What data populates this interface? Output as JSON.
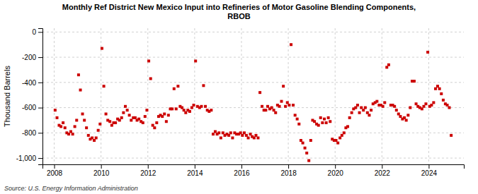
{
  "chart_data": {
    "type": "scatter",
    "title": "Monthly Ref District New Mexico Input into Refineries of Motor Gasoline Blending Components,\nRBOB",
    "ylabel": "Thousand Barrels",
    "source": "Source: U.S. Energy Information Administration",
    "color": "#cc0000",
    "marker": "square",
    "grid": true,
    "xlim": [
      2007.5,
      2025.5
    ],
    "xticks": [
      2008,
      2010,
      2012,
      2014,
      2016,
      2018,
      2020,
      2022,
      2024
    ],
    "ylim": [
      -1050,
      30
    ],
    "yticks": [
      0,
      -200,
      -400,
      -600,
      -800,
      {
        "value": -1000,
        "label": "-1,000"
      }
    ],
    "x": [
      2008.04,
      2008.12,
      2008.21,
      2008.29,
      2008.38,
      2008.46,
      2008.54,
      2008.62,
      2008.71,
      2008.79,
      2008.88,
      2008.96,
      2009.04,
      2009.12,
      2009.21,
      2009.29,
      2009.38,
      2009.46,
      2009.54,
      2009.62,
      2009.71,
      2009.79,
      2009.88,
      2009.96,
      2010.04,
      2010.12,
      2010.21,
      2010.29,
      2010.38,
      2010.46,
      2010.54,
      2010.62,
      2010.71,
      2010.79,
      2010.88,
      2010.96,
      2011.04,
      2011.12,
      2011.21,
      2011.29,
      2011.38,
      2011.46,
      2011.54,
      2011.62,
      2011.71,
      2011.79,
      2011.88,
      2011.96,
      2012.04,
      2012.12,
      2012.21,
      2012.29,
      2012.38,
      2012.46,
      2012.54,
      2012.62,
      2012.71,
      2012.79,
      2012.88,
      2012.96,
      2013.04,
      2013.12,
      2013.21,
      2013.29,
      2013.38,
      2013.46,
      2013.54,
      2013.62,
      2013.71,
      2013.79,
      2013.88,
      2013.96,
      2014.04,
      2014.12,
      2014.21,
      2014.29,
      2014.38,
      2014.46,
      2014.54,
      2014.62,
      2014.71,
      2014.79,
      2014.88,
      2014.96,
      2015.04,
      2015.12,
      2015.21,
      2015.29,
      2015.38,
      2015.46,
      2015.54,
      2015.62,
      2015.71,
      2015.79,
      2015.88,
      2015.96,
      2016.04,
      2016.12,
      2016.21,
      2016.29,
      2016.38,
      2016.46,
      2016.54,
      2016.62,
      2016.71,
      2016.79,
      2016.88,
      2016.96,
      2017.04,
      2017.12,
      2017.21,
      2017.29,
      2017.38,
      2017.46,
      2017.54,
      2017.62,
      2017.71,
      2017.79,
      2017.88,
      2017.96,
      2018.04,
      2018.12,
      2018.21,
      2018.29,
      2018.38,
      2018.46,
      2018.54,
      2018.62,
      2018.71,
      2018.79,
      2018.88,
      2018.96,
      2019.04,
      2019.12,
      2019.21,
      2019.29,
      2019.38,
      2019.46,
      2019.54,
      2019.62,
      2019.71,
      2019.79,
      2019.88,
      2019.96,
      2020.04,
      2020.12,
      2020.21,
      2020.29,
      2020.38,
      2020.46,
      2020.54,
      2020.62,
      2020.71,
      2020.79,
      2020.88,
      2020.96,
      2021.04,
      2021.12,
      2021.21,
      2021.29,
      2021.38,
      2021.46,
      2021.54,
      2021.62,
      2021.71,
      2021.79,
      2021.88,
      2021.96,
      2022.04,
      2022.12,
      2022.21,
      2022.29,
      2022.38,
      2022.46,
      2022.54,
      2022.62,
      2022.71,
      2022.79,
      2022.88,
      2022.96,
      2023.04,
      2023.12,
      2023.21,
      2023.29,
      2023.38,
      2023.46,
      2023.54,
      2023.62,
      2023.71,
      2023.79,
      2023.88,
      2023.96,
      2024.04,
      2024.12,
      2024.21,
      2024.29,
      2024.38,
      2024.46,
      2024.54,
      2024.62,
      2024.71,
      2024.79,
      2024.88,
      2024.96
    ],
    "values": [
      -620,
      -680,
      -740,
      -750,
      -720,
      -760,
      -800,
      -810,
      -790,
      -810,
      -750,
      -700,
      -340,
      -460,
      -650,
      -700,
      -760,
      -820,
      -850,
      -840,
      -860,
      -840,
      -780,
      -730,
      -130,
      -430,
      -650,
      -700,
      -710,
      -740,
      -720,
      -720,
      -690,
      -700,
      -680,
      -640,
      -590,
      -620,
      -660,
      -700,
      -680,
      -680,
      -700,
      -690,
      -710,
      -720,
      -670,
      -620,
      -230,
      -370,
      -740,
      -760,
      -720,
      -670,
      -660,
      -670,
      -650,
      -710,
      -660,
      -610,
      -610,
      -450,
      -610,
      -430,
      -590,
      -600,
      -620,
      -640,
      -620,
      -630,
      -600,
      -580,
      -230,
      -590,
      -600,
      -590,
      -425,
      -590,
      -620,
      -630,
      -620,
      -810,
      -790,
      -810,
      -800,
      -840,
      -800,
      -820,
      -810,
      -820,
      -800,
      -840,
      -800,
      -810,
      -810,
      -800,
      -820,
      -800,
      -820,
      -840,
      -810,
      -830,
      -840,
      -820,
      -840,
      -480,
      -590,
      -620,
      -620,
      -590,
      -610,
      -600,
      -620,
      -640,
      -580,
      -590,
      -550,
      -430,
      -590,
      -560,
      -580,
      -100,
      -580,
      -660,
      -690,
      -730,
      -860,
      -880,
      -920,
      -960,
      -1020,
      -860,
      -700,
      -710,
      -730,
      -740,
      -680,
      -720,
      -690,
      -720,
      -680,
      -710,
      -850,
      -860,
      -860,
      -880,
      -840,
      -820,
      -800,
      -760,
      -750,
      -680,
      -640,
      -610,
      -600,
      -580,
      -640,
      -600,
      -620,
      -600,
      -640,
      -660,
      -620,
      -570,
      -560,
      -550,
      -580,
      -580,
      -590,
      -560,
      -280,
      -260,
      -580,
      -580,
      -590,
      -620,
      -650,
      -670,
      -690,
      -680,
      -700,
      -660,
      -600,
      -390,
      -390,
      -570,
      -590,
      -600,
      -610,
      -590,
      -570,
      -160,
      -590,
      -580,
      -560,
      -450,
      -430,
      -450,
      -490,
      -540,
      -570,
      -580,
      -600,
      -820
    ]
  }
}
